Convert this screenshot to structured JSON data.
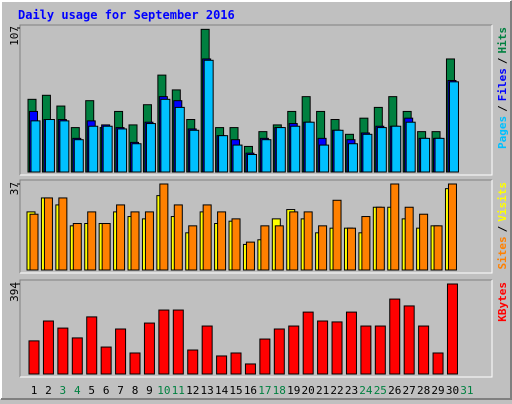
{
  "chart_data": [
    {
      "type": "bar",
      "title": "Daily usage for September 2016",
      "separator": "/",
      "ylim": [
        0,
        107
      ],
      "yticks": [
        107
      ],
      "series": [
        {
          "name": "Hits",
          "color": "#008040",
          "values": [
            54,
            57,
            49,
            33,
            53,
            33,
            45,
            35,
            50,
            72,
            61,
            39,
            106,
            33,
            33,
            19,
            30,
            35,
            45,
            56,
            45,
            39,
            28,
            40,
            48,
            56,
            45,
            30,
            30,
            84,
            0
          ]
        },
        {
          "name": "Files",
          "color": "#0000ff",
          "values": [
            45,
            39,
            39,
            25,
            38,
            35,
            33,
            22,
            37,
            56,
            53,
            32,
            84,
            27,
            24,
            14,
            25,
            33,
            36,
            37,
            25,
            31,
            24,
            29,
            34,
            34,
            40,
            25,
            25,
            68,
            0
          ]
        },
        {
          "name": "Pages",
          "color": "#00c0ff",
          "values": [
            38,
            39,
            38,
            24,
            34,
            34,
            32,
            21,
            36,
            54,
            48,
            31,
            83,
            27,
            20,
            13,
            24,
            33,
            34,
            37,
            20,
            31,
            21,
            28,
            33,
            34,
            37,
            25,
            25,
            67,
            0
          ]
        }
      ]
    },
    {
      "type": "bar",
      "separator": "/",
      "ylim": [
        0,
        37
      ],
      "yticks": [
        37
      ],
      "series": [
        {
          "name": "Visits",
          "color": "#ffff00",
          "values": [
            25,
            31,
            28,
            19,
            20,
            20,
            25,
            23,
            22,
            32,
            23,
            16,
            25,
            20,
            21,
            11,
            13,
            22,
            26,
            22,
            16,
            18,
            18,
            16,
            27,
            27,
            22,
            18,
            19,
            35,
            0
          ]
        },
        {
          "name": "Sites",
          "color": "#ff8000",
          "values": [
            24,
            31,
            31,
            20,
            25,
            20,
            28,
            25,
            25,
            37,
            28,
            19,
            28,
            25,
            22,
            12,
            19,
            19,
            25,
            25,
            19,
            30,
            18,
            23,
            27,
            37,
            27,
            24,
            19,
            37,
            0
          ]
        }
      ]
    },
    {
      "type": "bar",
      "ylim": [
        0,
        394
      ],
      "yticks": [
        394
      ],
      "categories": [
        "1",
        "2",
        "3",
        "4",
        "5",
        "6",
        "7",
        "8",
        "9",
        "10",
        "11",
        "12",
        "13",
        "14",
        "15",
        "16",
        "17",
        "18",
        "19",
        "20",
        "21",
        "22",
        "23",
        "24",
        "25",
        "26",
        "27",
        "28",
        "29",
        "30",
        "31"
      ],
      "highlight": [
        "3",
        "4",
        "10",
        "11",
        "17",
        "18",
        "24",
        "25",
        "31"
      ],
      "highlight_color": "#008040",
      "series": [
        {
          "name": "KBytes",
          "color": "#ff0000",
          "values": [
            145,
            232,
            201,
            158,
            250,
            118,
            197,
            92,
            223,
            280,
            280,
            105,
            210,
            79,
            92,
            44,
            153,
            197,
            210,
            271,
            232,
            228,
            271,
            210,
            210,
            328,
            298,
            210,
            92,
            394,
            0
          ]
        }
      ]
    }
  ]
}
